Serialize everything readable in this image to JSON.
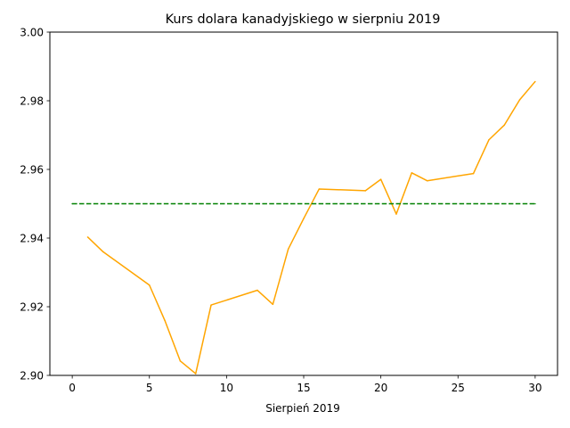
{
  "chart_data": {
    "type": "line",
    "title": "Kurs dolara kanadyjskiego w sierpniu 2019",
    "xlabel": "Sierpień 2019",
    "ylabel": "",
    "xlim": [
      -1.45,
      31.45
    ],
    "ylim": [
      2.9,
      3.0
    ],
    "xticks": [
      0,
      5,
      10,
      15,
      20,
      25,
      30
    ],
    "xtick_labels": [
      "0",
      "5",
      "10",
      "15",
      "20",
      "25",
      "30"
    ],
    "yticks": [
      2.9,
      2.92,
      2.94,
      2.96,
      2.98,
      3.0
    ],
    "ytick_labels": [
      "2.90",
      "2.92",
      "2.94",
      "2.96",
      "2.98",
      "3.00"
    ],
    "grid": false,
    "series": [
      {
        "style": "solid",
        "color": "#ffa500",
        "x": [
          1,
          2,
          5,
          6,
          7,
          8,
          9,
          12,
          13,
          14,
          15,
          16,
          19,
          20,
          21,
          22,
          23,
          26,
          27,
          28,
          29,
          30
        ],
        "y": [
          2.9403,
          2.936,
          2.9263,
          2.916,
          2.9042,
          2.9005,
          2.9205,
          2.9248,
          2.9207,
          2.9368,
          2.9457,
          2.9543,
          2.9538,
          2.9571,
          2.947,
          2.959,
          2.9567,
          2.9588,
          2.9686,
          2.9729,
          2.9803,
          2.9856
        ]
      },
      {
        "style": "dashed",
        "color": "#008000",
        "x": [
          0,
          30
        ],
        "y": [
          2.95,
          2.95
        ]
      }
    ]
  }
}
